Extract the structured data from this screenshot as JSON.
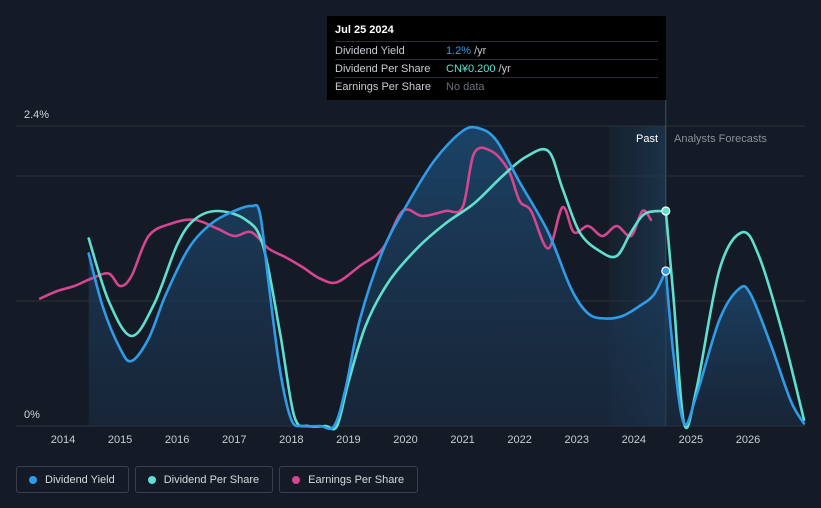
{
  "tooltip": {
    "date": "Jul 25 2024",
    "rows": [
      {
        "label": "Dividend Yield",
        "value": "1.2%",
        "unit": "/yr"
      },
      {
        "label": "Dividend Per Share",
        "value": "CN¥0.200",
        "unit": "/yr"
      },
      {
        "label": "Earnings Per Share",
        "value": "No data"
      }
    ]
  },
  "regions": {
    "past": "Past",
    "forecast": "Analysts Forecasts"
  },
  "legend": [
    {
      "label": "Dividend Yield",
      "color": "#2f9ce8"
    },
    {
      "label": "Dividend Per Share",
      "color": "#5fe0cf"
    },
    {
      "label": "Earnings Per Share",
      "color": "#d4468f"
    }
  ],
  "chart_data": {
    "type": "line",
    "y_axis_labels": [
      "2.4%",
      "0%"
    ],
    "ylim": [
      0,
      2.4
    ],
    "xlim": [
      2013.6,
      2027.0
    ],
    "x_ticks": [
      "2014",
      "2015",
      "2016",
      "2017",
      "2018",
      "2019",
      "2020",
      "2021",
      "2022",
      "2023",
      "2024",
      "2025",
      "2026"
    ],
    "grid": true,
    "past_end_x": 2024.56,
    "forecast_shade_start_x": 2023.56,
    "series": [
      {
        "name": "Dividend Yield",
        "color": "#2f9ce8",
        "area": true,
        "points": [
          [
            2014.45,
            1.38
          ],
          [
            2014.7,
            0.95
          ],
          [
            2015.0,
            0.62
          ],
          [
            2015.2,
            0.52
          ],
          [
            2015.5,
            0.7
          ],
          [
            2015.8,
            1.05
          ],
          [
            2016.2,
            1.42
          ],
          [
            2016.6,
            1.62
          ],
          [
            2017.0,
            1.72
          ],
          [
            2017.3,
            1.76
          ],
          [
            2017.45,
            1.7
          ],
          [
            2017.6,
            1.15
          ],
          [
            2017.8,
            0.45
          ],
          [
            2018.0,
            0.05
          ],
          [
            2018.2,
            0.0
          ],
          [
            2018.5,
            0.0
          ],
          [
            2018.75,
            0.0
          ],
          [
            2018.95,
            0.3
          ],
          [
            2019.2,
            0.85
          ],
          [
            2019.6,
            1.4
          ],
          [
            2020.0,
            1.75
          ],
          [
            2020.5,
            2.12
          ],
          [
            2021.0,
            2.36
          ],
          [
            2021.3,
            2.38
          ],
          [
            2021.6,
            2.28
          ],
          [
            2022.0,
            1.95
          ],
          [
            2022.5,
            1.55
          ],
          [
            2022.9,
            1.1
          ],
          [
            2023.2,
            0.9
          ],
          [
            2023.5,
            0.86
          ],
          [
            2023.8,
            0.88
          ],
          [
            2024.1,
            0.96
          ],
          [
            2024.35,
            1.05
          ],
          [
            2024.56,
            1.24
          ]
        ]
      },
      {
        "name": "Dividend Yield Forecast",
        "color": "#2f9ce8",
        "area": true,
        "points": [
          [
            2024.56,
            1.24
          ],
          [
            2024.7,
            0.55
          ],
          [
            2024.88,
            0.02
          ],
          [
            2025.1,
            0.25
          ],
          [
            2025.5,
            0.85
          ],
          [
            2025.85,
            1.1
          ],
          [
            2026.05,
            1.05
          ],
          [
            2026.4,
            0.65
          ],
          [
            2026.75,
            0.2
          ],
          [
            2026.98,
            0.02
          ]
        ]
      },
      {
        "name": "Dividend Per Share",
        "color": "#5fe0cf",
        "area": false,
        "points": [
          [
            2014.45,
            1.5
          ],
          [
            2014.8,
            1.0
          ],
          [
            2015.2,
            0.72
          ],
          [
            2015.6,
            0.98
          ],
          [
            2016.0,
            1.45
          ],
          [
            2016.3,
            1.65
          ],
          [
            2016.7,
            1.72
          ],
          [
            2017.2,
            1.65
          ],
          [
            2017.5,
            1.45
          ],
          [
            2017.8,
            0.75
          ],
          [
            2018.05,
            0.08
          ],
          [
            2018.3,
            0.0
          ],
          [
            2018.6,
            0.0
          ],
          [
            2018.8,
            0.0
          ],
          [
            2019.0,
            0.35
          ],
          [
            2019.3,
            0.8
          ],
          [
            2019.7,
            1.15
          ],
          [
            2020.2,
            1.42
          ],
          [
            2020.7,
            1.62
          ],
          [
            2021.2,
            1.78
          ],
          [
            2021.7,
            2.0
          ],
          [
            2022.1,
            2.15
          ],
          [
            2022.5,
            2.2
          ],
          [
            2022.75,
            1.9
          ],
          [
            2023.05,
            1.55
          ],
          [
            2023.4,
            1.4
          ],
          [
            2023.7,
            1.36
          ],
          [
            2023.95,
            1.55
          ],
          [
            2024.2,
            1.7
          ],
          [
            2024.56,
            1.72
          ]
        ]
      },
      {
        "name": "Dividend Per Share Forecast",
        "color": "#5fe0cf",
        "area": false,
        "points": [
          [
            2024.56,
            1.72
          ],
          [
            2024.7,
            1.0
          ],
          [
            2024.88,
            0.02
          ],
          [
            2025.1,
            0.3
          ],
          [
            2025.5,
            1.25
          ],
          [
            2025.9,
            1.55
          ],
          [
            2026.2,
            1.35
          ],
          [
            2026.6,
            0.75
          ],
          [
            2026.98,
            0.05
          ]
        ]
      },
      {
        "name": "Earnings Per Share",
        "color": "#d4468f",
        "area": false,
        "points": [
          [
            2013.6,
            1.02
          ],
          [
            2013.9,
            1.08
          ],
          [
            2014.2,
            1.12
          ],
          [
            2014.5,
            1.18
          ],
          [
            2014.8,
            1.22
          ],
          [
            2015.0,
            1.12
          ],
          [
            2015.2,
            1.2
          ],
          [
            2015.5,
            1.52
          ],
          [
            2015.9,
            1.62
          ],
          [
            2016.3,
            1.65
          ],
          [
            2016.7,
            1.58
          ],
          [
            2017.0,
            1.52
          ],
          [
            2017.3,
            1.55
          ],
          [
            2017.6,
            1.42
          ],
          [
            2017.9,
            1.35
          ],
          [
            2018.2,
            1.27
          ],
          [
            2018.5,
            1.18
          ],
          [
            2018.8,
            1.15
          ],
          [
            2019.2,
            1.28
          ],
          [
            2019.6,
            1.42
          ],
          [
            2019.95,
            1.72
          ],
          [
            2020.3,
            1.68
          ],
          [
            2020.7,
            1.72
          ],
          [
            2021.0,
            1.75
          ],
          [
            2021.2,
            2.18
          ],
          [
            2021.5,
            2.2
          ],
          [
            2021.8,
            2.05
          ],
          [
            2022.0,
            1.8
          ],
          [
            2022.2,
            1.72
          ],
          [
            2022.5,
            1.42
          ],
          [
            2022.75,
            1.75
          ],
          [
            2022.95,
            1.55
          ],
          [
            2023.2,
            1.6
          ],
          [
            2023.45,
            1.52
          ],
          [
            2023.7,
            1.6
          ],
          [
            2023.95,
            1.52
          ],
          [
            2024.15,
            1.72
          ],
          [
            2024.3,
            1.65
          ]
        ]
      }
    ],
    "markers": [
      {
        "series": "Dividend Per Share",
        "x": 2024.56,
        "y": 1.72
      },
      {
        "series": "Dividend Yield",
        "x": 2024.56,
        "y": 1.24
      }
    ]
  }
}
